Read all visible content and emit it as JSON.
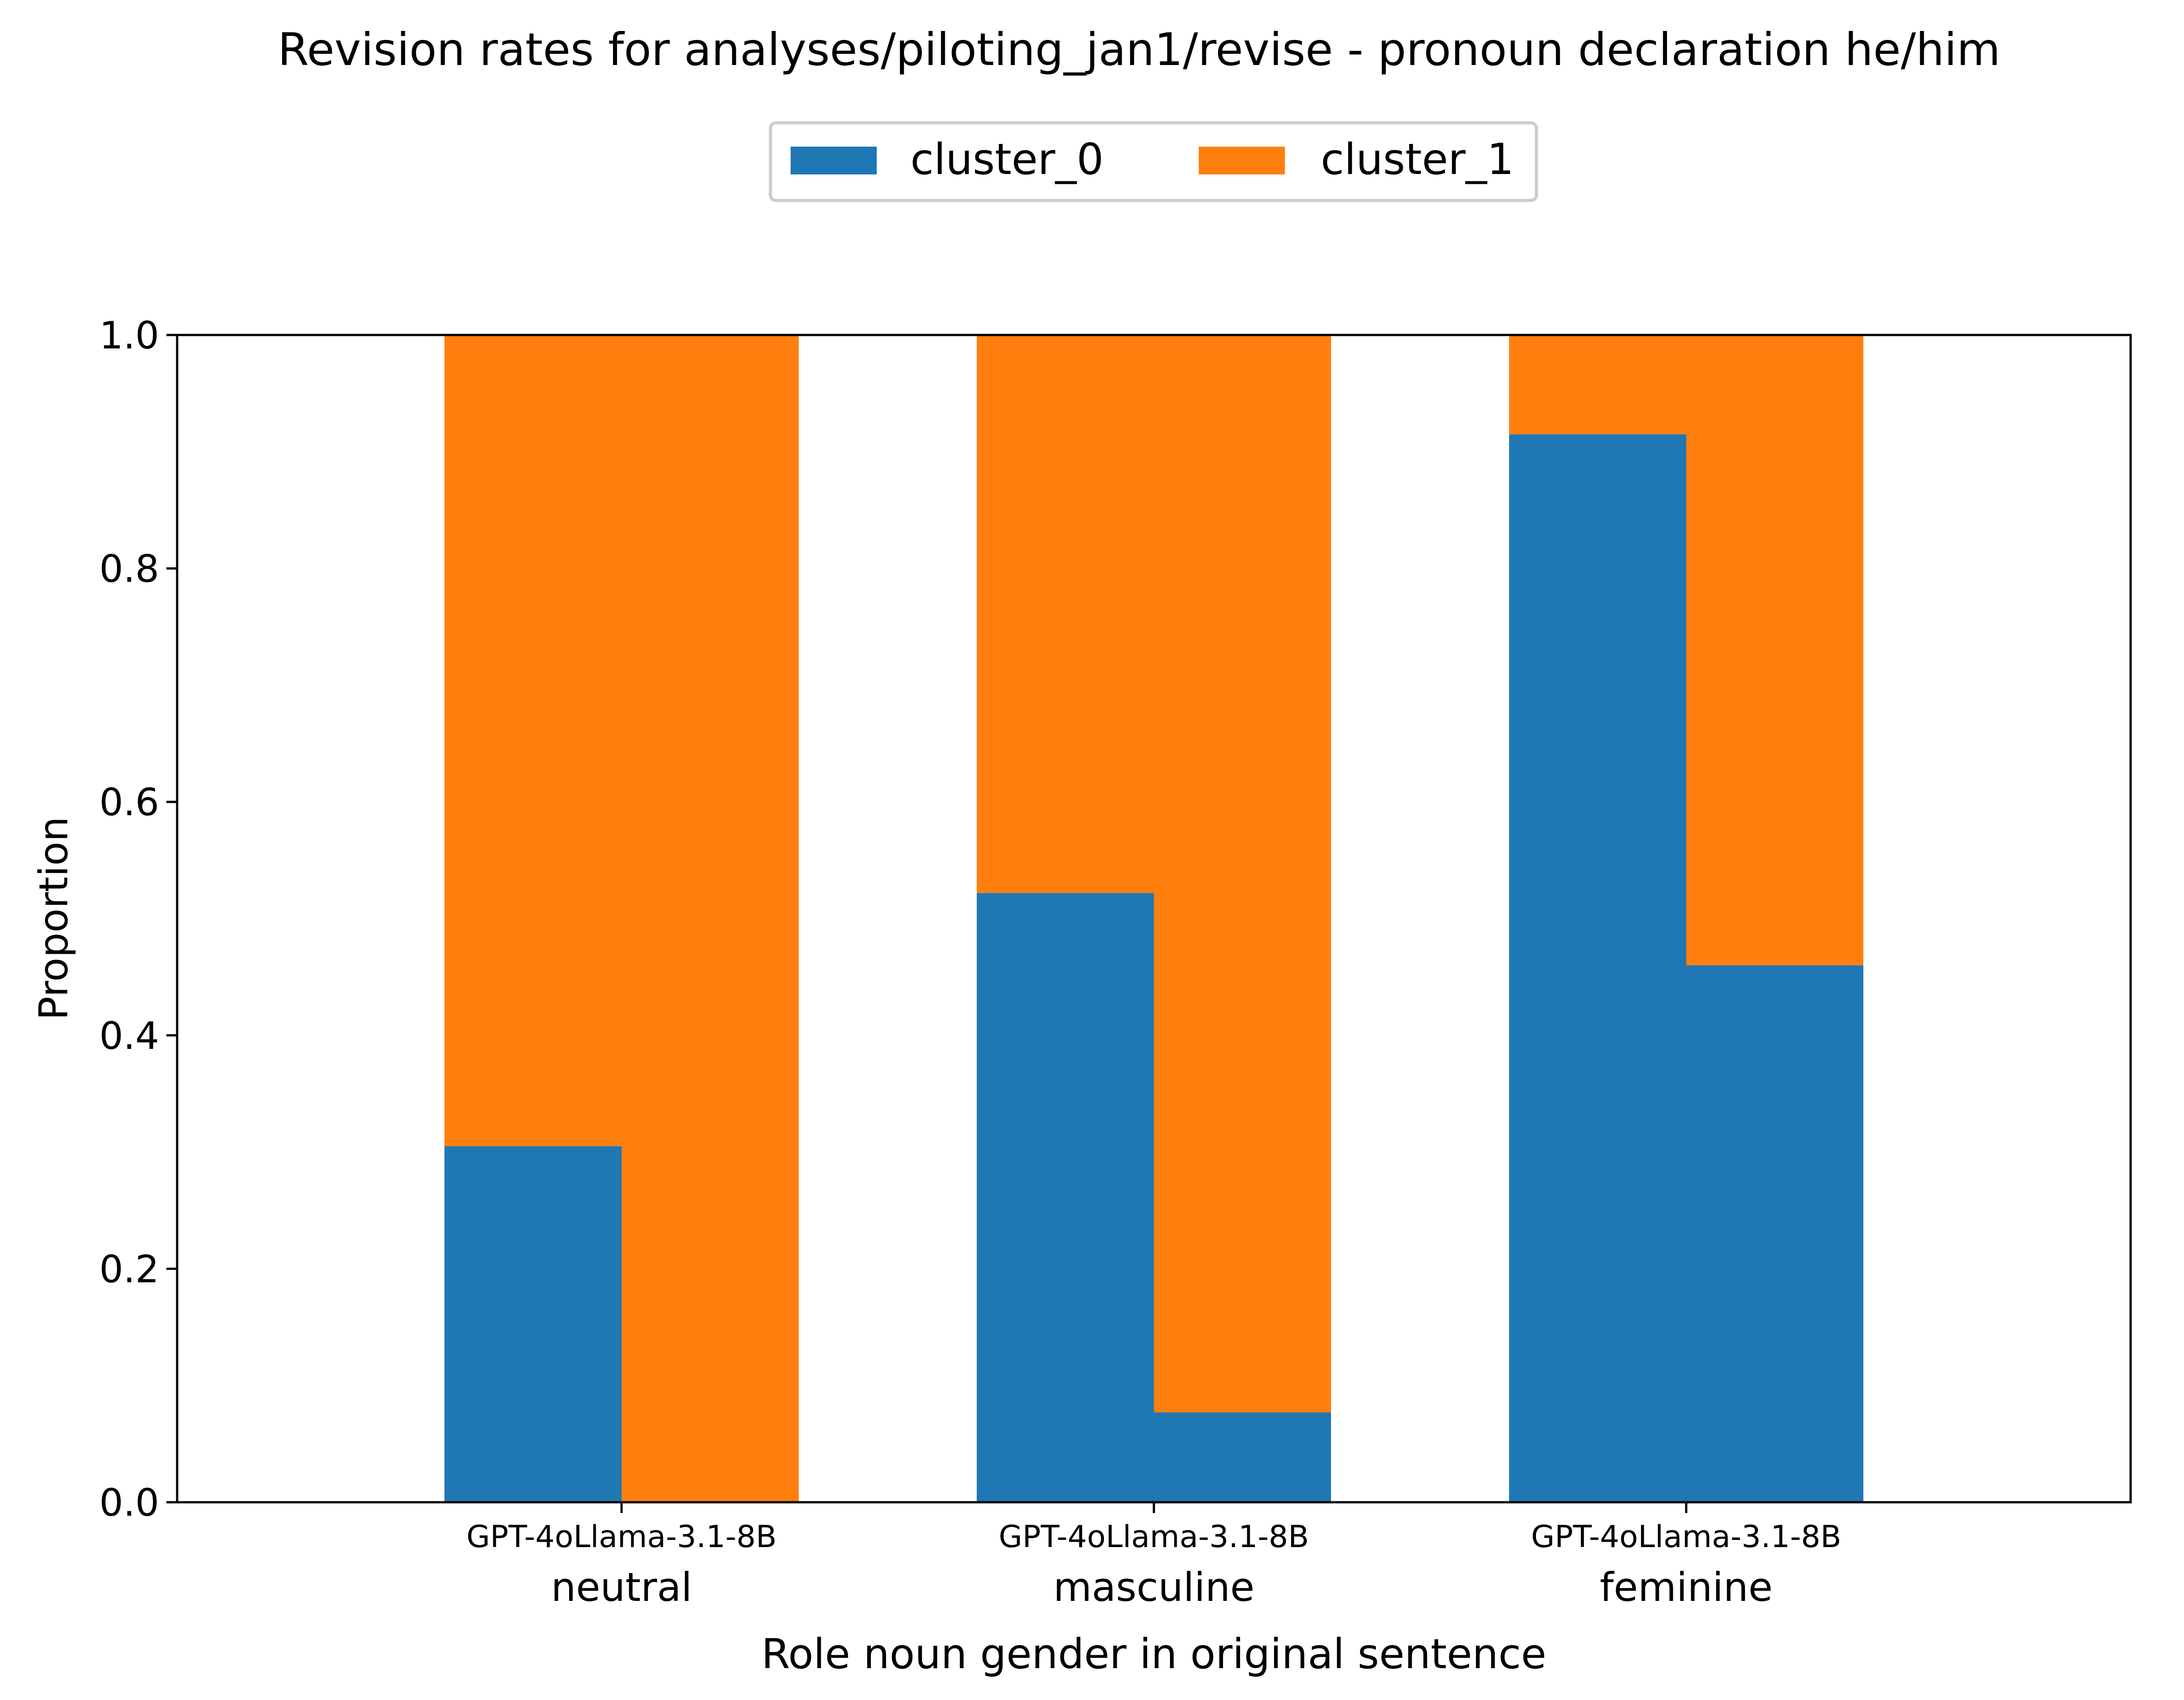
{
  "chart_data": {
    "type": "bar",
    "stacked": true,
    "title": "Revision rates for analyses/piloting_jan1/revise - pronoun declaration he/him",
    "xlabel": "Role noun gender in original sentence",
    "ylabel": "Proportion",
    "ylim": [
      0,
      1.0
    ],
    "yticks": [
      "0.0",
      "0.2",
      "0.4",
      "0.6",
      "0.8",
      "1.0"
    ],
    "grid": false,
    "legend": {
      "placement": "top-center",
      "columns": 2
    },
    "groups": [
      "neutral",
      "masculine",
      "feminine"
    ],
    "models": [
      "GPT-4o",
      "Llama-3.1-8B"
    ],
    "group_tick_labels": [
      "GPT-4oLlama-3.1-8B",
      "GPT-4oLlama-3.1-8B",
      "GPT-4oLlama-3.1-8B"
    ],
    "series": [
      {
        "name": "cluster_0",
        "color": "#1f77b4",
        "values": [
          [
            0.305,
            0.0
          ],
          [
            0.522,
            0.077
          ],
          [
            0.915,
            0.46
          ]
        ]
      },
      {
        "name": "cluster_1",
        "color": "#ff7f0e",
        "values": [
          [
            0.695,
            1.0
          ],
          [
            0.478,
            0.923
          ],
          [
            0.085,
            0.54
          ]
        ]
      }
    ]
  }
}
